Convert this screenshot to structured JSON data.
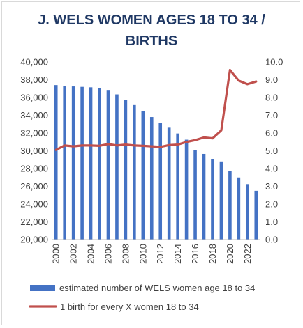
{
  "chart_data": {
    "type": "bar",
    "title_lines": [
      "J. WELS WOMEN AGES 18 TO 34 /",
      "BIRTHS"
    ],
    "x": [
      2000,
      2001,
      2002,
      2003,
      2004,
      2005,
      2006,
      2007,
      2008,
      2009,
      2010,
      2011,
      2012,
      2013,
      2014,
      2015,
      2016,
      2017,
      2018,
      2019,
      2020,
      2021,
      2022,
      2023
    ],
    "x_tick_labels": [
      "2000",
      "2002",
      "2004",
      "2006",
      "2008",
      "2010",
      "2012",
      "2014",
      "2016",
      "2018",
      "2020",
      "2022"
    ],
    "y_left_ticks": [
      "20,000",
      "22,000",
      "24,000",
      "26,000",
      "28,000",
      "30,000",
      "32,000",
      "34,000",
      "36,000",
      "38,000",
      "40,000"
    ],
    "y_right_ticks": [
      "0.0",
      "1.0",
      "2.0",
      "3.0",
      "4.0",
      "5.0",
      "6.0",
      "7.0",
      "8.0",
      "9.0",
      "10.0"
    ],
    "ylim_left": [
      20000,
      40000
    ],
    "ylim_right": [
      0,
      10
    ],
    "series": [
      {
        "name": "estimated number of WELS women age 18 to 34",
        "kind": "bar",
        "axis": "left",
        "color": "#4472c4",
        "values": [
          37400,
          37300,
          37250,
          37200,
          37150,
          37050,
          36850,
          36350,
          35700,
          35150,
          34450,
          33800,
          33150,
          32600,
          31950,
          31250,
          30050,
          29650,
          29050,
          28800,
          27700,
          27000,
          26250,
          25500
        ]
      },
      {
        "name": "1 birth for every X women 18 to 34",
        "kind": "line",
        "axis": "right",
        "color": "#c0504d",
        "values": [
          5.05,
          5.3,
          5.25,
          5.3,
          5.3,
          5.28,
          5.38,
          5.3,
          5.35,
          5.3,
          5.28,
          5.25,
          5.22,
          5.32,
          5.35,
          5.5,
          5.6,
          5.75,
          5.7,
          6.15,
          9.55,
          8.95,
          8.75,
          8.9
        ]
      }
    ],
    "grid": false,
    "legend": "bottom"
  }
}
